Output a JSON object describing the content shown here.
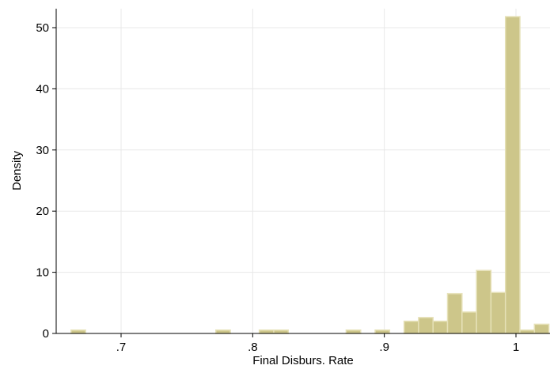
{
  "chart_data": {
    "type": "bar",
    "title": "",
    "xlabel": "Final Disburs. Rate",
    "ylabel": "Density",
    "xlim": [
      0.655,
      1.025
    ],
    "ylim": [
      0,
      53
    ],
    "grid": true,
    "bar_color": "#cdc68a",
    "bar_edge_color": "#e6e1b8",
    "bin_width": 0.011,
    "x_ticks": [
      {
        "value": 0.7,
        "label": ".7"
      },
      {
        "value": 0.8,
        "label": ".8"
      },
      {
        "value": 0.9,
        "label": ".9"
      },
      {
        "value": 1.0,
        "label": "1"
      }
    ],
    "y_ticks": [
      {
        "value": 0,
        "label": "0"
      },
      {
        "value": 10,
        "label": "10"
      },
      {
        "value": 20,
        "label": "20"
      },
      {
        "value": 30,
        "label": "30"
      },
      {
        "value": 40,
        "label": "40"
      },
      {
        "value": 50,
        "label": "50"
      }
    ],
    "bins": [
      {
        "start": 0.662,
        "density": 0.55
      },
      {
        "start": 0.772,
        "density": 0.55
      },
      {
        "start": 0.805,
        "density": 0.55
      },
      {
        "start": 0.816,
        "density": 0.55
      },
      {
        "start": 0.871,
        "density": 0.55
      },
      {
        "start": 0.893,
        "density": 0.55
      },
      {
        "start": 0.915,
        "density": 2.0
      },
      {
        "start": 0.926,
        "density": 2.6
      },
      {
        "start": 0.937,
        "density": 2.0
      },
      {
        "start": 0.948,
        "density": 6.5
      },
      {
        "start": 0.959,
        "density": 3.5
      },
      {
        "start": 0.97,
        "density": 10.3
      },
      {
        "start": 0.981,
        "density": 6.7
      },
      {
        "start": 0.992,
        "density": 51.8
      },
      {
        "start": 1.003,
        "density": 0.55
      },
      {
        "start": 1.014,
        "density": 1.5
      }
    ]
  }
}
